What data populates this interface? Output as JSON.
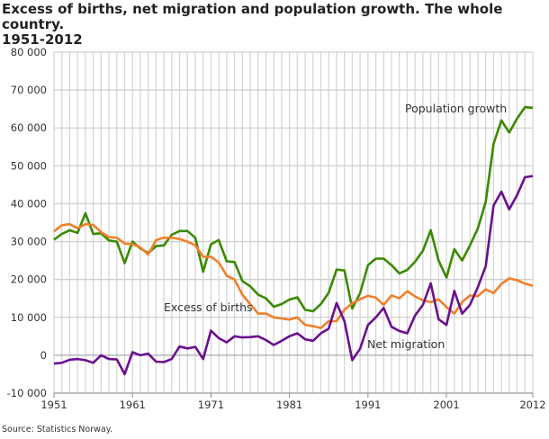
{
  "chart_data": {
    "type": "line",
    "title": "Excess of births, net migration and population growth. The whole country.",
    "subtitle": "1951-2012",
    "source": "Source: Statistics Norway.",
    "xlabel": "",
    "ylabel": "",
    "ylim": [
      -10000,
      80000
    ],
    "yticks": [
      -10000,
      0,
      10000,
      20000,
      30000,
      40000,
      50000,
      60000,
      70000,
      80000
    ],
    "ytick_labels": [
      "-10 000",
      "0",
      "10 000",
      "20 000",
      "30 000",
      "40 000",
      "50 000",
      "60 000",
      "70 000",
      "80 000"
    ],
    "xlim": [
      1951,
      2012
    ],
    "xtick_labels": [
      "1951",
      "1961",
      "1971",
      "1981",
      "1991",
      "2001",
      "2012"
    ],
    "grid": true,
    "legend": "inline labels",
    "x": [
      1951,
      1952,
      1953,
      1954,
      1955,
      1956,
      1957,
      1958,
      1959,
      1960,
      1961,
      1962,
      1963,
      1964,
      1965,
      1966,
      1967,
      1968,
      1969,
      1970,
      1971,
      1972,
      1973,
      1974,
      1975,
      1976,
      1977,
      1978,
      1979,
      1980,
      1981,
      1982,
      1983,
      1984,
      1985,
      1986,
      1987,
      1988,
      1989,
      1990,
      1991,
      1992,
      1993,
      1994,
      1995,
      1996,
      1997,
      1998,
      1999,
      2000,
      2001,
      2002,
      2003,
      2004,
      2005,
      2006,
      2007,
      2008,
      2009,
      2010,
      2011,
      2012
    ],
    "series": [
      {
        "name": "Population growth",
        "color": "#3a8a00",
        "values": [
          30500,
          32000,
          33000,
          32300,
          37500,
          32000,
          32200,
          30300,
          30000,
          24300,
          30000,
          28200,
          27000,
          28800,
          29000,
          31800,
          32800,
          32800,
          31000,
          22000,
          29300,
          30400,
          24800,
          24600,
          19600,
          18200,
          16000,
          15000,
          12800,
          13500,
          14700,
          15300,
          12000,
          11600,
          13500,
          16500,
          22600,
          22400,
          12300,
          16400,
          23800,
          25500,
          25500,
          23800,
          21600,
          22500,
          24700,
          27600,
          33000,
          25000,
          20500,
          28000,
          25000,
          29000,
          33500,
          40500,
          55800,
          62000,
          58800,
          62500,
          65500,
          65300
        ]
      },
      {
        "name": "Excess of births",
        "color": "#f07f2a",
        "values": [
          32700,
          34300,
          34600,
          33500,
          34600,
          34400,
          32500,
          31200,
          31000,
          29500,
          29300,
          28500,
          26600,
          30400,
          31000,
          31000,
          30700,
          30000,
          29000,
          26000,
          26000,
          24500,
          21000,
          20000,
          16000,
          13500,
          11000,
          11000,
          10000,
          9700,
          9400,
          10000,
          8000,
          7700,
          7200,
          9000,
          9000,
          12000,
          13700,
          14800,
          15700,
          15200,
          13300,
          15800,
          15000,
          16900,
          15500,
          14500,
          14000,
          14800,
          12700,
          11000,
          14000,
          15800,
          15600,
          17400,
          16400,
          18800,
          20300,
          19800,
          18900,
          18300
        ]
      },
      {
        "name": "Net migration",
        "color": "#6a0f8e",
        "values": [
          -2200,
          -2000,
          -1200,
          -1000,
          -1300,
          -2000,
          0,
          -1000,
          -1100,
          -5000,
          800,
          0,
          400,
          -1700,
          -1800,
          -1000,
          2300,
          1800,
          2200,
          -1000,
          6500,
          4500,
          3400,
          5000,
          4700,
          4800,
          5000,
          4000,
          2700,
          3800,
          5000,
          5800,
          4200,
          3800,
          5800,
          7000,
          13800,
          9000,
          -1300,
          1700,
          8000,
          10000,
          12500,
          7500,
          6400,
          5800,
          10500,
          13300,
          19000,
          9500,
          8000,
          17000,
          11000,
          13300,
          18000,
          23500,
          39500,
          43200,
          38500,
          42300,
          47000,
          47300
        ]
      }
    ]
  }
}
